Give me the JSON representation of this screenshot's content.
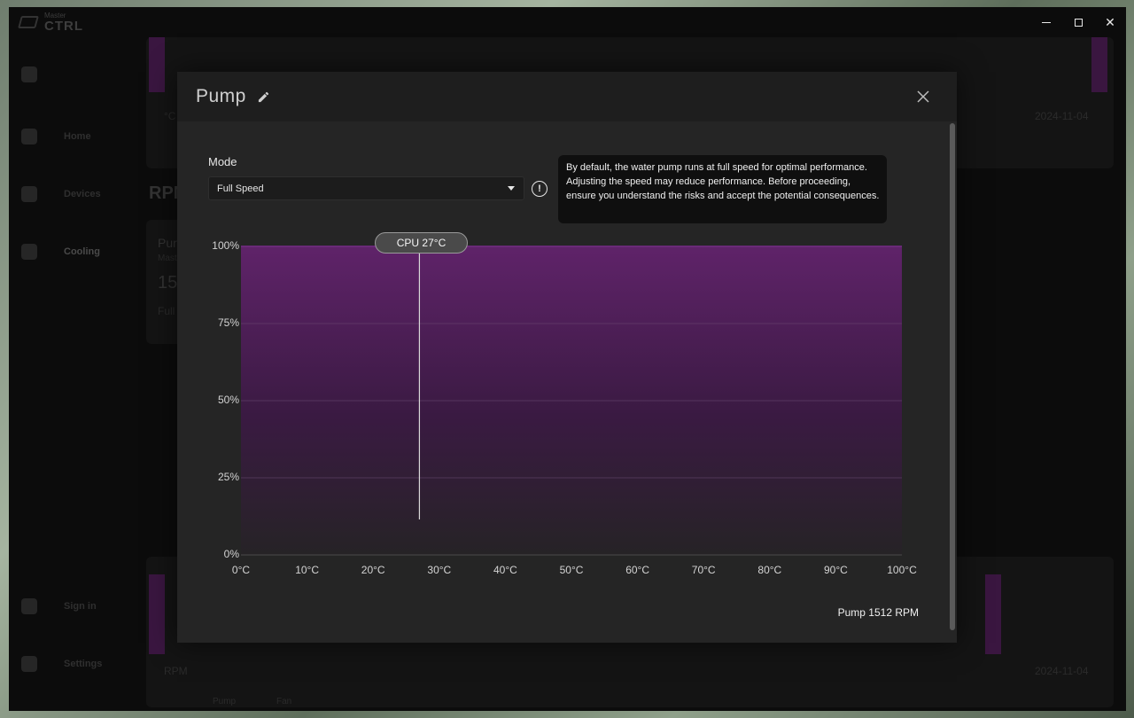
{
  "window": {
    "brand_small": "Master",
    "brand_big": "CTRL",
    "minimize_symbol": "—",
    "close_symbol": "✕"
  },
  "sidebar": {
    "items": [
      {
        "label": "Home",
        "icon": "home-icon"
      },
      {
        "label": "Devices",
        "icon": "devices-icon"
      },
      {
        "label": "Cooling",
        "icon": "fan-icon"
      },
      {
        "label": "Sign in",
        "icon": "sign-in-icon"
      },
      {
        "label": "Settings",
        "icon": "gear-icon"
      }
    ]
  },
  "background": {
    "heading": "RPM",
    "card_title": "Pur",
    "card_subtitle": "Mast",
    "card_value": "15",
    "card_mode": "Full",
    "date_top": "2024-11-04",
    "date_bottom": "2024-11-04",
    "unit_top": "°C",
    "unit_bottom": "RPM",
    "legend_pump": "Pump",
    "legend_fan": "Fan"
  },
  "dialog": {
    "title": "Pump",
    "mode_label": "Mode",
    "mode_value": "Full Speed",
    "info_symbol": "!",
    "tooltip": "By default, the water pump runs at full speed for optimal performance. Adjusting the speed may reduce performance. Before proceeding, ensure you understand the risks and accept the potential consequences.",
    "cpu_badge": "CPU 27°C",
    "pump_readout": "Pump 1512 RPM"
  },
  "colors": {
    "accent_purple": "#5e2469",
    "curve_top": "#6a2a78",
    "curve_bottom": "#2a2030",
    "dialog_bg": "#252525"
  },
  "chart_data": {
    "type": "area",
    "title": "",
    "xlabel": "",
    "ylabel": "",
    "x": [
      0,
      10,
      20,
      30,
      40,
      50,
      60,
      70,
      80,
      90,
      100
    ],
    "x_tick_labels": [
      "0°C",
      "10°C",
      "20°C",
      "30°C",
      "40°C",
      "50°C",
      "60°C",
      "70°C",
      "80°C",
      "90°C",
      "100°C"
    ],
    "y_tick_labels": [
      "0%",
      "25%",
      "50%",
      "75%",
      "100%"
    ],
    "y_ticks": [
      0,
      25,
      50,
      75,
      100
    ],
    "series": [
      {
        "values": [
          100,
          100,
          100,
          100,
          100,
          100,
          100,
          100,
          100,
          100,
          100
        ]
      }
    ],
    "xlim": [
      0,
      100
    ],
    "ylim": [
      0,
      100
    ],
    "marker": {
      "label": "CPU 27°C",
      "x": 27
    },
    "grid": true
  }
}
